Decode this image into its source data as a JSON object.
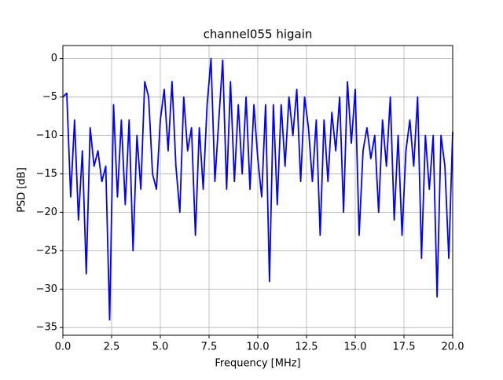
{
  "chart_data": {
    "type": "line",
    "title": "channel055 higain",
    "xlabel": "Frequency [MHz]",
    "ylabel": "PSD [dB]",
    "x": [
      0,
      0.2,
      0.4,
      0.6,
      0.8,
      1.0,
      1.2,
      1.4,
      1.6,
      1.8,
      2.0,
      2.2,
      2.4,
      2.6,
      2.8,
      3.0,
      3.2,
      3.4,
      3.6,
      3.8,
      4.0,
      4.2,
      4.4,
      4.6,
      4.8,
      5.0,
      5.2,
      5.4,
      5.6,
      5.8,
      6.0,
      6.2,
      6.4,
      6.6,
      6.8,
      7.0,
      7.2,
      7.4,
      7.6,
      7.8,
      8.0,
      8.2,
      8.4,
      8.6,
      8.8,
      9.0,
      9.2,
      9.4,
      9.6,
      9.8,
      10.0,
      10.2,
      10.4,
      10.6,
      10.8,
      11.0,
      11.2,
      11.4,
      11.6,
      11.8,
      12.0,
      12.2,
      12.4,
      12.6,
      12.8,
      13.0,
      13.2,
      13.4,
      13.6,
      13.8,
      14.0,
      14.2,
      14.4,
      14.6,
      14.8,
      15.0,
      15.2,
      15.4,
      15.6,
      15.8,
      16.0,
      16.2,
      16.4,
      16.6,
      16.8,
      17.0,
      17.2,
      17.4,
      17.6,
      17.8,
      18.0,
      18.2,
      18.4,
      18.6,
      18.8,
      19.0,
      19.2,
      19.4,
      19.6,
      19.8,
      20.0
    ],
    "series": [
      {
        "name": "channel055",
        "color": "#0000ff",
        "values": [
          -5,
          -4.5,
          -18,
          -8,
          -21,
          -12,
          -28,
          -9,
          -14,
          -12,
          -16,
          -14,
          -34,
          -6,
          -18,
          -8,
          -19,
          -8,
          -25,
          -10,
          -17,
          -3,
          -5,
          -15,
          -17,
          -8,
          -4,
          -12,
          -3,
          -14,
          -20,
          -5,
          -12,
          -9,
          -23,
          -9,
          -17,
          -6,
          0,
          -16,
          -8,
          -0.2,
          -17,
          -3,
          -16,
          -6,
          -15,
          -5,
          -17,
          -6,
          -13,
          -18,
          -6,
          -29,
          -6,
          -19,
          -6,
          -14,
          -5,
          -10,
          -4,
          -16,
          -5,
          -9,
          -16,
          -8,
          -23,
          -8,
          -16,
          -7,
          -12,
          -5,
          -20,
          -3,
          -11,
          -4,
          -23,
          -12,
          -9,
          -13,
          -10,
          -20,
          -8,
          -14,
          -5,
          -21,
          -10,
          -23,
          -12,
          -8,
          -14,
          -5,
          -26,
          -10,
          -17,
          -10,
          -31,
          -10,
          -14,
          -26,
          -9.5
        ]
      }
    ],
    "xlim": [
      0,
      20
    ],
    "ylim": [
      -36.0,
      1.7
    ],
    "xticks": [
      {
        "value": 0,
        "label": "0.0"
      },
      {
        "value": 2.5,
        "label": "2.5"
      },
      {
        "value": 5,
        "label": "5.0"
      },
      {
        "value": 7.5,
        "label": "7.5"
      },
      {
        "value": 10,
        "label": "10.0"
      },
      {
        "value": 12.5,
        "label": "12.5"
      },
      {
        "value": 15,
        "label": "15.0"
      },
      {
        "value": 17.5,
        "label": "17.5"
      },
      {
        "value": 20,
        "label": "20.0"
      }
    ],
    "yticks": [
      {
        "value": -35,
        "label": "−35"
      },
      {
        "value": -30,
        "label": "−30"
      },
      {
        "value": -25,
        "label": "−25"
      },
      {
        "value": -20,
        "label": "−20"
      },
      {
        "value": -15,
        "label": "−15"
      },
      {
        "value": -10,
        "label": "−10"
      },
      {
        "value": -5,
        "label": "−5"
      },
      0
    ],
    "grid": true
  }
}
